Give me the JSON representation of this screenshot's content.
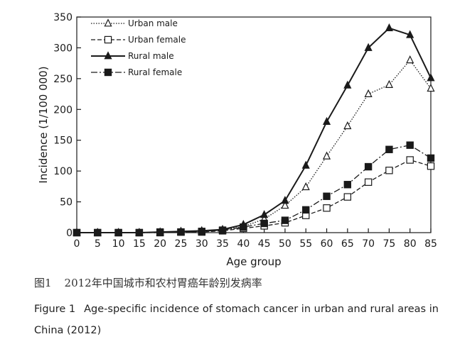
{
  "chart_data": {
    "type": "line",
    "title": "",
    "xlabel": "Age group",
    "ylabel": "Incidence (1/100 000)",
    "xlim": [
      0,
      85
    ],
    "ylim": [
      0,
      350
    ],
    "xticks": [
      0,
      5,
      10,
      15,
      20,
      25,
      30,
      35,
      40,
      45,
      50,
      55,
      60,
      65,
      70,
      75,
      80,
      85
    ],
    "yticks": [
      0,
      50,
      100,
      150,
      200,
      250,
      300,
      350
    ],
    "legend_position": "top-left",
    "x": [
      0,
      5,
      10,
      15,
      20,
      25,
      30,
      35,
      40,
      45,
      50,
      55,
      60,
      65,
      70,
      75,
      80,
      85
    ],
    "series": [
      {
        "name": "Urban male",
        "line": "dotted",
        "marker": "open-triangle",
        "color": "#1a1a1a",
        "values": [
          0,
          0,
          0,
          0,
          0,
          1,
          2,
          4,
          10,
          22,
          44,
          74,
          124,
          173,
          225,
          240,
          280,
          234
        ]
      },
      {
        "name": "Urban female",
        "line": "dashed",
        "marker": "open-square",
        "color": "#1a1a1a",
        "values": [
          0,
          0,
          0,
          0,
          0,
          1,
          1,
          3,
          7,
          11,
          16,
          28,
          40,
          58,
          82,
          101,
          118,
          108
        ]
      },
      {
        "name": "Rural male",
        "line": "solid",
        "marker": "filled-triangle",
        "color": "#1a1a1a",
        "values": [
          0,
          0,
          0,
          0,
          1,
          2,
          3,
          5,
          13,
          29,
          52,
          109,
          180,
          239,
          300,
          332,
          321,
          251
        ]
      },
      {
        "name": "Rural female",
        "line": "dashdot",
        "marker": "filled-square",
        "color": "#1a1a1a",
        "values": [
          0,
          0,
          0,
          0,
          1,
          1,
          2,
          4,
          9,
          15,
          20,
          37,
          59,
          78,
          107,
          135,
          142,
          121
        ]
      }
    ]
  },
  "captions": {
    "zh_label": "图1",
    "zh_text": "2012年中国城市和农村胃癌年龄别发病率",
    "en_label": "Figure 1",
    "en_text": "Age-specific incidence of stomach cancer in urban and rural areas in China (2012)"
  }
}
